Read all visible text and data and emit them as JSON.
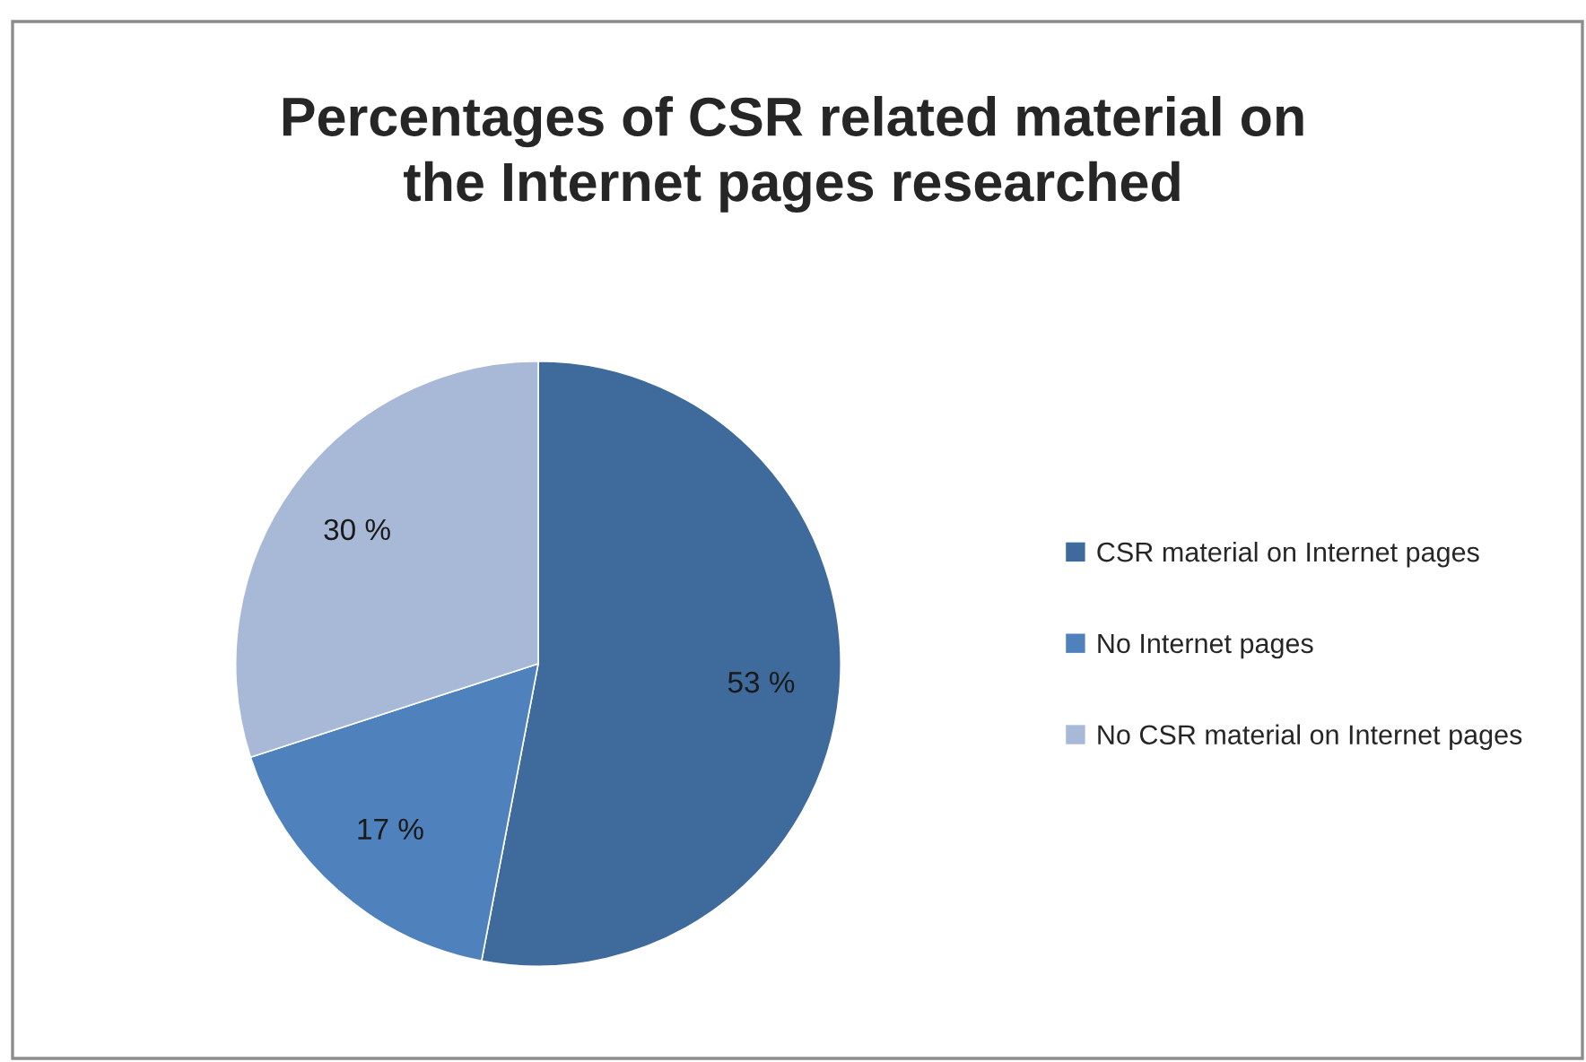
{
  "chart_data": {
    "type": "pie",
    "title": "Percentages of CSR related material on\nthe Internet pages researched",
    "categories": [
      "CSR material on Internet pages",
      "No Internet pages",
      "No CSR material on Internet pages"
    ],
    "values": [
      53,
      17,
      30
    ],
    "colors": [
      "#3f6a9c",
      "#4f81bd",
      "#a8b9d8"
    ],
    "value_labels": [
      "53 %",
      "17 %",
      "30 %"
    ],
    "legend": "right"
  }
}
